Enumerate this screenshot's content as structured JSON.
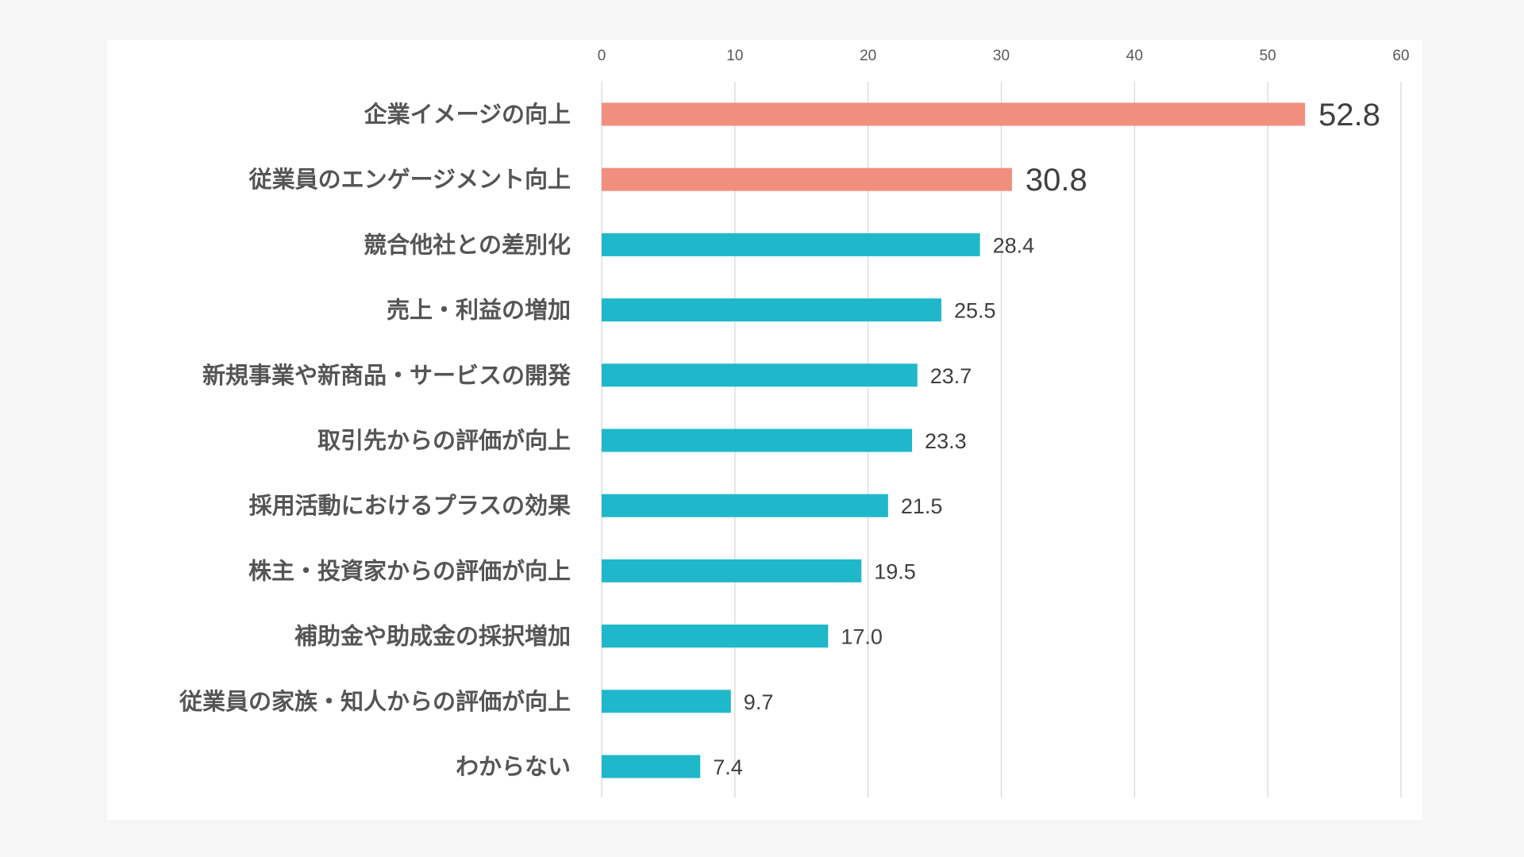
{
  "chart_data": {
    "type": "bar",
    "orientation": "horizontal",
    "categories": [
      "企業イメージの向上",
      "従業員のエンゲージメント向上",
      "競合他社との差別化",
      "売上・利益の増加",
      "新規事業や新商品・サービスの開発",
      "取引先からの評価が向上",
      "採用活動におけるプラスの効果",
      "株主・投資家からの評価が向上",
      "補助金や助成金の採択増加",
      "従業員の家族・知人からの評価が向上",
      "わからない"
    ],
    "values": [
      52.8,
      30.8,
      28.4,
      25.5,
      23.7,
      23.3,
      21.5,
      19.5,
      17.0,
      9.7,
      7.4
    ],
    "value_labels": [
      "52.8",
      "30.8",
      "28.4",
      "25.5",
      "23.7",
      "23.3",
      "21.5",
      "19.5",
      "17.0",
      "9.7",
      "7.4"
    ],
    "highlighted": [
      true,
      true,
      false,
      false,
      false,
      false,
      false,
      false,
      false,
      false,
      false
    ],
    "xlim": [
      0,
      60
    ],
    "x_ticks": [
      "0",
      "10",
      "20",
      "30",
      "40",
      "50",
      "60"
    ],
    "x_axis_position": "top",
    "grid": true,
    "title": "",
    "xlabel": "",
    "ylabel": "",
    "colors": {
      "highlight": "#F28E7D",
      "default": "#1FB8CA",
      "grid": "#d9d9d9"
    }
  }
}
